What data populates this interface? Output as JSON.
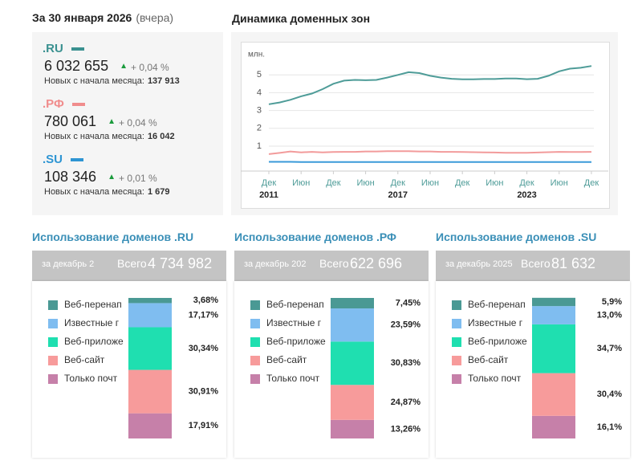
{
  "summary": {
    "date": "За 30 января 2026",
    "note": "(вчера)",
    "zones": [
      {
        "name": ".RU",
        "color": "#3a9190",
        "total": "6 032 655",
        "change": "+ 0,04 %",
        "new_label": "Новых с начала месяца:",
        "new_value": "137 913"
      },
      {
        "name": ".РФ",
        "color": "#f08c8c",
        "total": "780 061",
        "change": "+ 0,04 %",
        "new_label": "Новых с начала месяца:",
        "new_value": "16 042"
      },
      {
        "name": ".SU",
        "color": "#2e95d3",
        "total": "108 346",
        "change": "+ 0,01 %",
        "new_label": "Новых с начала месяца:",
        "new_value": "1 679"
      }
    ]
  },
  "chart_data": [
    {
      "type": "line",
      "title": "Динамика доменных зон",
      "y_unit": "млн.",
      "x": [
        2011.9,
        2012.4,
        2012.9,
        2013.4,
        2013.9,
        2014.4,
        2014.9,
        2015.4,
        2015.9,
        2016.4,
        2016.9,
        2017.4,
        2017.9,
        2018.4,
        2018.9,
        2019.4,
        2019.9,
        2020.4,
        2020.9,
        2021.4,
        2021.9,
        2022.4,
        2022.9,
        2023.4,
        2023.9,
        2024.4,
        2024.9,
        2025.4,
        2025.9,
        2026.4,
        2026.9
      ],
      "xlim": [
        2011.9,
        2027.2
      ],
      "xticks": [
        {
          "value": 2011.9,
          "label": "Дек"
        },
        {
          "value": 2013.4,
          "label": "Июн"
        },
        {
          "value": 2014.9,
          "label": "Дек"
        },
        {
          "value": 2016.4,
          "label": "Июн"
        },
        {
          "value": 2017.9,
          "label": "Дек"
        },
        {
          "value": 2019.4,
          "label": "Июн"
        },
        {
          "value": 2020.9,
          "label": "Дек"
        },
        {
          "value": 2022.4,
          "label": "Июн"
        },
        {
          "value": 2023.9,
          "label": "Дек"
        },
        {
          "value": 2025.4,
          "label": "Июн"
        },
        {
          "value": 2026.9,
          "label": "Дек"
        }
      ],
      "x_year_labels": [
        {
          "value": 2011.9,
          "label": "2011"
        },
        {
          "value": 2017.9,
          "label": "2017"
        },
        {
          "value": 2023.9,
          "label": "2023"
        }
      ],
      "ylim": [
        -0.4,
        6.5
      ],
      "yticks": [
        1,
        2,
        3,
        4,
        5
      ],
      "grid": true,
      "series": [
        {
          "name": ".RU",
          "color": "#4e9c98",
          "values": [
            3.35,
            3.45,
            3.6,
            3.8,
            3.95,
            4.2,
            4.5,
            4.68,
            4.72,
            4.7,
            4.72,
            4.85,
            5.0,
            5.15,
            5.1,
            4.95,
            4.85,
            4.78,
            4.75,
            4.75,
            4.77,
            4.77,
            4.8,
            4.8,
            4.76,
            4.78,
            4.95,
            5.2,
            5.35,
            5.4,
            5.5
          ]
        },
        {
          "name": ".РФ",
          "color": "#f29b9b",
          "values": [
            0.55,
            0.62,
            0.7,
            0.65,
            0.68,
            0.65,
            0.67,
            0.68,
            0.68,
            0.7,
            0.7,
            0.72,
            0.72,
            0.72,
            0.7,
            0.7,
            0.68,
            0.68,
            0.67,
            0.66,
            0.65,
            0.64,
            0.63,
            0.63,
            0.63,
            0.64,
            0.66,
            0.68,
            0.67,
            0.67,
            0.68
          ]
        },
        {
          "name": ".SU",
          "color": "#3a9ad9",
          "values": [
            0.12,
            0.12,
            0.12,
            0.11,
            0.11,
            0.11,
            0.11,
            0.11,
            0.11,
            0.11,
            0.11,
            0.11,
            0.11,
            0.11,
            0.11,
            0.11,
            0.11,
            0.11,
            0.11,
            0.11,
            0.11,
            0.11,
            0.11,
            0.11,
            0.11,
            0.11,
            0.11,
            0.11,
            0.11,
            0.11,
            0.11
          ]
        }
      ]
    },
    {
      "type": "stacked_bar",
      "title": "Использование доменов .RU",
      "subtitle": "за декабрь 2",
      "total_label": "Всего",
      "total": "4 734 982",
      "ylim": [
        0,
        100
      ],
      "series": [
        {
          "name": "Веб-перенап",
          "color": "#4a9994",
          "values": [
            3.68
          ],
          "value_labels": [
            "3,68%"
          ]
        },
        {
          "name": "Известные г",
          "color": "#7fbdf0",
          "values": [
            17.17
          ],
          "value_labels": [
            "17,17%"
          ]
        },
        {
          "name": "Веб-приложе",
          "color": "#1fdfb0",
          "values": [
            30.34
          ],
          "value_labels": [
            "30,34%"
          ]
        },
        {
          "name": "Веб-сайт",
          "color": "#f79b9b",
          "values": [
            30.91
          ],
          "value_labels": [
            "30,91%"
          ]
        },
        {
          "name": "Только почт",
          "color": "#c680a9",
          "values": [
            17.91
          ],
          "value_labels": [
            "17,91%"
          ]
        }
      ]
    },
    {
      "type": "stacked_bar",
      "title": "Использование доменов .РФ",
      "subtitle": "за декабрь 202",
      "total_label": "Всего",
      "total": "622 696",
      "ylim": [
        0,
        100
      ],
      "series": [
        {
          "name": "Веб-перенап",
          "color": "#4a9994",
          "values": [
            7.45
          ],
          "value_labels": [
            "7,45%"
          ]
        },
        {
          "name": "Известные г",
          "color": "#7fbdf0",
          "values": [
            23.59
          ],
          "value_labels": [
            "23,59%"
          ]
        },
        {
          "name": "Веб-приложе",
          "color": "#1fdfb0",
          "values": [
            30.83
          ],
          "value_labels": [
            "30,83%"
          ]
        },
        {
          "name": "Веб-сайт",
          "color": "#f79b9b",
          "values": [
            24.87
          ],
          "value_labels": [
            "24,87%"
          ]
        },
        {
          "name": "Только почт",
          "color": "#c680a9",
          "values": [
            13.26
          ],
          "value_labels": [
            "13,26%"
          ]
        }
      ]
    },
    {
      "type": "stacked_bar",
      "title": "Использование доменов .SU",
      "subtitle": "за декабрь 2025",
      "total_label": "Всего",
      "total": "81 632",
      "ylim": [
        0,
        100
      ],
      "series": [
        {
          "name": "Веб-перенап",
          "color": "#4a9994",
          "values": [
            5.9
          ],
          "value_labels": [
            "5,9%"
          ]
        },
        {
          "name": "Известные г",
          "color": "#7fbdf0",
          "values": [
            13.0
          ],
          "value_labels": [
            "13,0%"
          ]
        },
        {
          "name": "Веб-приложе",
          "color": "#1fdfb0",
          "values": [
            34.7
          ],
          "value_labels": [
            "34,7%"
          ]
        },
        {
          "name": "Веб-сайт",
          "color": "#f79b9b",
          "values": [
            30.4
          ],
          "value_labels": [
            "30,4%"
          ]
        },
        {
          "name": "Только почт",
          "color": "#c680a9",
          "values": [
            16.1
          ],
          "value_labels": [
            "16,1%"
          ]
        }
      ]
    }
  ]
}
